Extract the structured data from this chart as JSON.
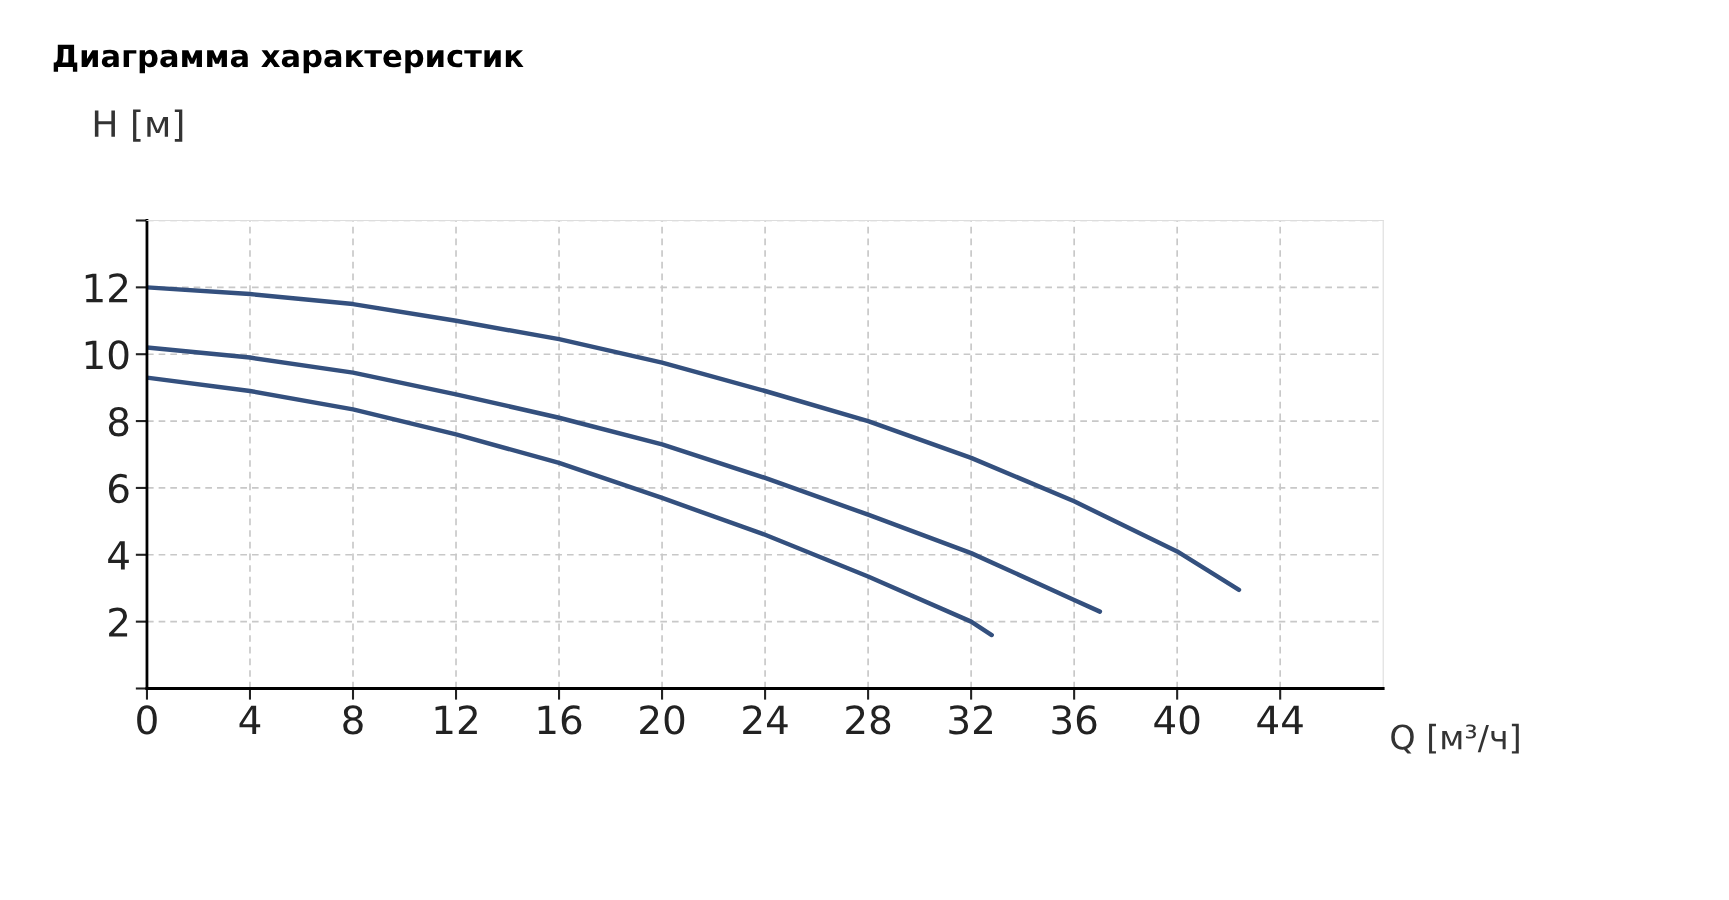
{
  "chart_data": {
    "type": "line",
    "title": "Диаграмма характеристик",
    "xlabel": "Q [м³/ч]",
    "ylabel": "H [м]",
    "xlim": [
      0,
      48
    ],
    "ylim": [
      0,
      14
    ],
    "xticks": [
      0,
      4,
      8,
      12,
      16,
      20,
      24,
      28,
      32,
      36,
      40,
      44
    ],
    "yticks": [
      {
        "value": 0,
        "label": null
      },
      2,
      4,
      6,
      8,
      10,
      12,
      {
        "value": 14,
        "label": null
      }
    ],
    "grid": true,
    "marker": "none",
    "line_style": "solid",
    "series": [
      {
        "color": "#34507e",
        "x": [
          0,
          4,
          8,
          12,
          16,
          20,
          24,
          28,
          32,
          36,
          40,
          42.4
        ],
        "values": [
          12.0,
          11.8,
          11.5,
          11.0,
          10.45,
          9.75,
          8.9,
          8.0,
          6.9,
          5.6,
          4.1,
          2.95
        ]
      },
      {
        "color": "#34507e",
        "x": [
          0,
          4,
          8,
          12,
          16,
          20,
          24,
          28,
          32,
          36,
          37
        ],
        "values": [
          10.2,
          9.9,
          9.45,
          8.8,
          8.1,
          7.3,
          6.3,
          5.2,
          4.05,
          2.65,
          2.3
        ]
      },
      {
        "color": "#34507e",
        "x": [
          0,
          4,
          8,
          12,
          16,
          20,
          24,
          28,
          32,
          32.8
        ],
        "values": [
          9.3,
          8.9,
          8.35,
          7.6,
          6.75,
          5.7,
          4.6,
          3.35,
          2.0,
          1.6
        ]
      }
    ]
  }
}
